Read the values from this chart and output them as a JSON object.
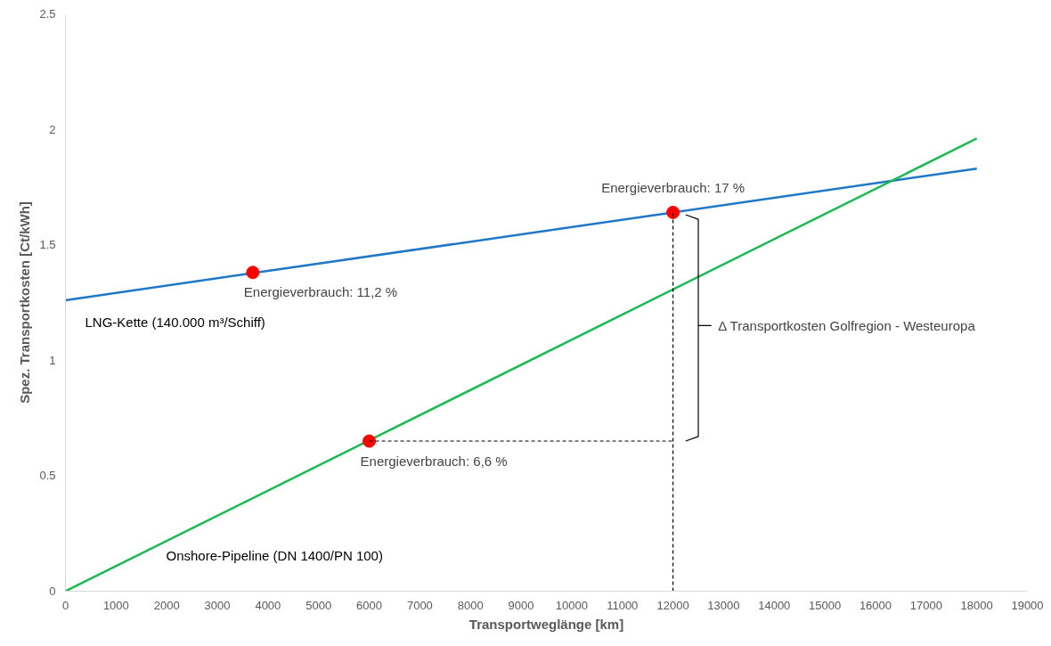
{
  "chart_data": {
    "type": "line",
    "xlabel": "Transportweglänge [km]",
    "ylabel": "Spez. Transportkosten [Ct/kWh]",
    "xlim": [
      0,
      19000
    ],
    "xticks": [
      0,
      1000,
      2000,
      3000,
      4000,
      5000,
      6000,
      7000,
      8000,
      9000,
      10000,
      11000,
      12000,
      13000,
      14000,
      15000,
      16000,
      17000,
      18000,
      19000
    ],
    "ylim": [
      0,
      2.5
    ],
    "yticks": [
      0,
      0.5,
      1,
      1.5,
      2,
      2.5
    ],
    "grid": false,
    "legend": false,
    "marker": "none",
    "line_style": "solid",
    "series": [
      {
        "name": "LNG-Kette (140.000 m³/Schiff)",
        "color": "#1f77c8",
        "x": [
          0,
          18000
        ],
        "values": [
          1.26,
          1.83
        ]
      },
      {
        "name": "Onshore-Pipeline (DN 1400/PN 100)",
        "color": "#1db954",
        "x": [
          0,
          18000
        ],
        "values": [
          0,
          1.96
        ]
      },
      {
        "type": "scatter",
        "marker": "circle",
        "color": "#ff0000",
        "x": [
          3700,
          12000,
          6000
        ],
        "values": [
          1.38,
          1.64,
          0.65
        ]
      },
      {
        "color": "#000000",
        "line_style": "dashed",
        "x": [
          6000,
          12000
        ],
        "values": [
          0.65,
          0.65
        ]
      },
      {
        "color": "#000000",
        "line_style": "dashed",
        "x": [
          12000,
          12000
        ],
        "values": [
          0,
          1.64
        ]
      },
      {
        "color": "#000000",
        "x": [
          12250,
          12500,
          12500,
          12750,
          12500,
          12500,
          12250
        ],
        "values": [
          1.63,
          1.61,
          1.15,
          1.15,
          1.15,
          0.67,
          0.65
        ]
      }
    ],
    "annotations": [
      {
        "text": "Energieverbrauch: 11,2 %",
        "x": 3700,
        "y": 1.38
      },
      {
        "text": "Energieverbrauch: 17 %",
        "x": 12000,
        "y": 1.64
      },
      {
        "text": "Energieverbrauch: 6,6 %",
        "x": 6000,
        "y": 0.65
      },
      {
        "text": "Δ Transportkosten Golfregion - Westeuropa",
        "x": 12750,
        "y": 1.15
      }
    ]
  }
}
